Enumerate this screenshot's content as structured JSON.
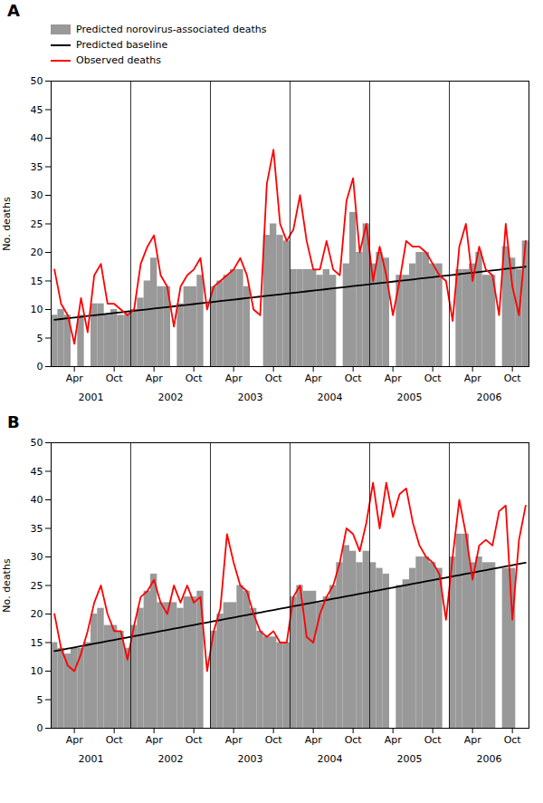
{
  "chart_data": [
    {
      "type": "bar",
      "title": "A",
      "ylabel": "No. deaths",
      "ylim": [
        0,
        50
      ],
      "yticks": [
        0,
        5,
        10,
        15,
        20,
        25,
        30,
        35,
        40,
        45,
        50
      ],
      "legend": "upper left",
      "categories": [
        null,
        null,
        null,
        "Apr",
        null,
        null,
        null,
        null,
        null,
        "Oct",
        null,
        null,
        null,
        null,
        null,
        "Apr",
        null,
        null,
        null,
        null,
        null,
        "Oct",
        null,
        null,
        null,
        null,
        null,
        "Apr",
        null,
        null,
        null,
        null,
        null,
        "Oct",
        null,
        null,
        null,
        null,
        null,
        "Apr",
        null,
        null,
        null,
        null,
        null,
        "Oct",
        null,
        null,
        null,
        null,
        null,
        "Apr",
        null,
        null,
        null,
        null,
        null,
        "Oct",
        null,
        null,
        null,
        null,
        null,
        "Apr",
        null,
        null,
        null,
        null,
        null,
        "Oct",
        null,
        null
      ],
      "annotations": [
        "2001",
        "2002",
        "2003",
        "2004",
        "2005",
        "2006"
      ],
      "series": [
        {
          "name": "Predicted norovirus-associated deaths",
          "type": "bar",
          "color": "#999999",
          "values": [
            9,
            10,
            9,
            0,
            9,
            0,
            11,
            11,
            9,
            10,
            9,
            9,
            10,
            12,
            15,
            19,
            14,
            14,
            0,
            11,
            14,
            14,
            16,
            0,
            14,
            15,
            16,
            17,
            17,
            14,
            0,
            0,
            23,
            25,
            23,
            22,
            17,
            17,
            17,
            17,
            16,
            17,
            16,
            0,
            18,
            27,
            20,
            25,
            18,
            20,
            19,
            0,
            16,
            16,
            18,
            20,
            20,
            18,
            18,
            0,
            0,
            17,
            17,
            18,
            20,
            16,
            16,
            0,
            21,
            19,
            17,
            22
          ]
        },
        {
          "name": "Predicted baseline",
          "type": "line",
          "color": "#000000",
          "values": [
            8.2,
            8.331,
            8.462,
            8.593,
            8.7239,
            8.8549,
            8.9859,
            9.1169,
            9.2479,
            9.3789,
            9.5099,
            9.6408,
            9.7718,
            9.9028,
            10.0338,
            10.1648,
            10.2958,
            10.4268,
            10.5577,
            10.6887,
            10.8197,
            10.9507,
            11.0817,
            11.2127,
            11.3437,
            11.4746,
            11.6056,
            11.7366,
            11.8676,
            11.9986,
            12.1296,
            12.2606,
            12.3915,
            12.5225,
            12.6535,
            12.7845,
            12.9155,
            13.0465,
            13.1775,
            13.3085,
            13.4394,
            13.5704,
            13.7014,
            13.8324,
            13.9634,
            14.0944,
            14.2254,
            14.3563,
            14.4873,
            14.6183,
            14.7493,
            14.8803,
            15.0113,
            15.1423,
            15.2732,
            15.4042,
            15.5352,
            15.6662,
            15.7972,
            15.9282,
            16.0592,
            16.1901,
            16.3211,
            16.4521,
            16.5831,
            16.7141,
            16.8451,
            16.9761,
            17.107,
            17.238,
            17.369,
            17.5
          ]
        },
        {
          "name": "Observed deaths",
          "type": "line",
          "color": "#ff0000",
          "values": [
            17,
            11,
            9,
            4,
            12,
            6,
            16,
            18,
            11,
            11,
            10,
            9,
            10,
            18,
            21,
            23,
            16,
            14,
            7,
            14,
            16,
            17,
            19,
            10,
            14,
            15,
            16,
            17,
            19,
            16,
            10,
            9,
            32,
            38,
            25,
            22,
            24,
            30,
            22,
            17,
            17,
            22,
            17,
            16,
            29,
            33,
            20,
            25,
            15,
            21,
            16,
            9,
            15,
            22,
            21,
            21,
            20,
            18,
            16,
            15,
            8,
            21,
            25,
            15,
            21,
            17,
            16,
            9,
            25,
            14,
            9,
            22
          ]
        }
      ]
    },
    {
      "type": "bar",
      "title": "B",
      "ylabel": "No. deaths",
      "ylim": [
        0,
        50
      ],
      "yticks": [
        0,
        5,
        10,
        15,
        20,
        25,
        30,
        35,
        40,
        45,
        50
      ],
      "categories": [
        null,
        null,
        null,
        "Apr",
        null,
        null,
        null,
        null,
        null,
        "Oct",
        null,
        null,
        null,
        null,
        null,
        "Apr",
        null,
        null,
        null,
        null,
        null,
        "Oct",
        null,
        null,
        null,
        null,
        null,
        "Apr",
        null,
        null,
        null,
        null,
        null,
        "Oct",
        null,
        null,
        null,
        null,
        null,
        "Apr",
        null,
        null,
        null,
        null,
        null,
        "Oct",
        null,
        null,
        null,
        null,
        null,
        "Apr",
        null,
        null,
        null,
        null,
        null,
        "Oct",
        null,
        null,
        null,
        null,
        null,
        "Apr",
        null,
        null,
        null,
        null,
        null,
        "Oct",
        null,
        null
      ],
      "annotations": [
        "2001",
        "2002",
        "2003",
        "2004",
        "2005",
        "2006"
      ],
      "series": [
        {
          "type": "bar",
          "color": "#999999",
          "values": [
            15,
            14,
            13,
            14,
            14,
            15,
            20,
            21,
            18,
            18,
            17,
            14,
            18,
            21,
            24,
            27,
            22,
            22,
            22,
            21,
            23,
            23,
            24,
            0,
            17,
            20,
            22,
            22,
            25,
            24,
            21,
            17,
            16,
            16,
            15,
            15,
            23,
            25,
            24,
            24,
            22,
            23,
            25,
            29,
            32,
            31,
            29,
            31,
            29,
            28,
            27,
            0,
            25,
            26,
            28,
            30,
            30,
            29,
            28,
            0,
            30,
            34,
            34,
            29,
            30,
            29,
            29,
            0,
            28,
            28,
            0,
            0
          ]
        },
        {
          "type": "line",
          "color": "#000000",
          "values": [
            13.5,
            13.7183,
            13.9366,
            14.1549,
            14.3732,
            14.5915,
            14.8099,
            15.0282,
            15.2465,
            15.4648,
            15.6831,
            15.9014,
            16.1197,
            16.338,
            16.5563,
            16.7746,
            16.993,
            17.2113,
            17.4296,
            17.6479,
            17.8662,
            18.0845,
            18.3028,
            18.5211,
            18.7394,
            18.9577,
            19.1761,
            19.3944,
            19.6127,
            19.831,
            20.0493,
            20.2676,
            20.4859,
            20.7042,
            20.9225,
            21.1408,
            21.3592,
            21.5775,
            21.7958,
            22.0141,
            22.2324,
            22.4507,
            22.669,
            22.8873,
            23.1056,
            23.3239,
            23.5423,
            23.7606,
            23.9789,
            24.1972,
            24.4155,
            24.6338,
            24.8521,
            25.0704,
            25.2887,
            25.507,
            25.7254,
            25.9437,
            26.162,
            26.3803,
            26.5986,
            26.8169,
            27.0352,
            27.2535,
            27.4718,
            27.6901,
            27.9085,
            28.1268,
            28.3451,
            28.5634,
            28.7817,
            29.0
          ]
        },
        {
          "type": "line",
          "color": "#ff0000",
          "values": [
            20,
            14,
            11,
            10,
            13,
            17,
            22,
            25,
            20,
            17,
            17,
            12,
            18,
            23,
            24,
            26,
            22,
            20,
            25,
            22,
            25,
            22,
            23,
            10,
            17,
            21,
            34,
            29,
            25,
            24,
            20,
            17,
            16,
            17,
            15,
            15,
            23,
            25,
            16,
            15,
            20,
            23,
            25,
            29,
            35,
            34,
            31,
            36,
            43,
            35,
            43,
            37,
            41,
            42,
            36,
            32,
            30,
            29,
            27,
            19,
            30,
            40,
            34,
            26,
            32,
            33,
            32,
            38,
            39,
            19,
            33,
            39
          ]
        }
      ]
    }
  ]
}
